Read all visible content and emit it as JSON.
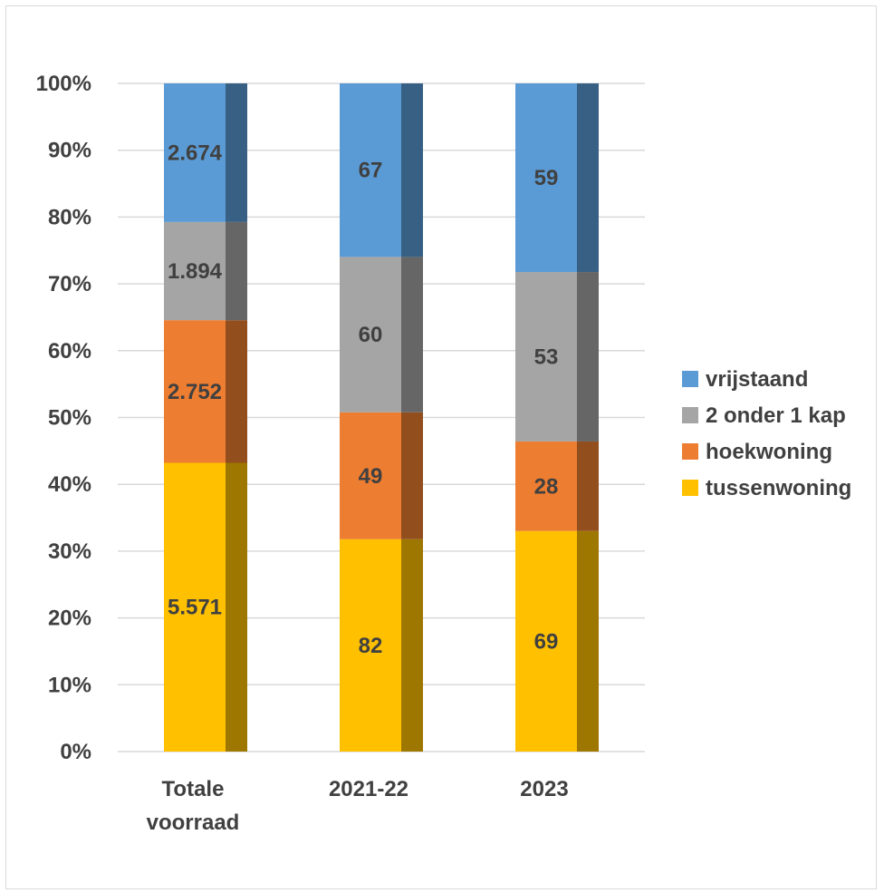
{
  "chart_data": {
    "type": "bar",
    "stacked": true,
    "normalized": true,
    "categories": [
      [
        "Totale",
        "voorraad"
      ],
      [
        "2021-22"
      ],
      [
        "2023"
      ]
    ],
    "series": [
      {
        "name": "tussenwoning",
        "color": "#ffc000",
        "values": [
          5571,
          82,
          69
        ],
        "labels": [
          "5.571",
          "82",
          "69"
        ]
      },
      {
        "name": "hoekwoning",
        "color": "#ed7d31",
        "values": [
          2752,
          49,
          28
        ],
        "labels": [
          "2.752",
          "49",
          "28"
        ]
      },
      {
        "name": "2 onder 1 kap",
        "color": "#a5a5a5",
        "values": [
          1894,
          60,
          53
        ],
        "labels": [
          "1.894",
          "60",
          "53"
        ]
      },
      {
        "name": "vrijstaand",
        "color": "#5b9bd5",
        "values": [
          2674,
          67,
          59
        ],
        "labels": [
          "2.674",
          "67",
          "59"
        ]
      }
    ],
    "legend_order": [
      "vrijstaand",
      "2 onder 1 kap",
      "hoekwoning",
      "tussenwoning"
    ],
    "yticks": [
      "0%",
      "10%",
      "20%",
      "30%",
      "40%",
      "50%",
      "60%",
      "70%",
      "80%",
      "90%",
      "100%"
    ],
    "ylim": [
      0,
      100
    ],
    "grid": true,
    "legend_position": "right"
  }
}
